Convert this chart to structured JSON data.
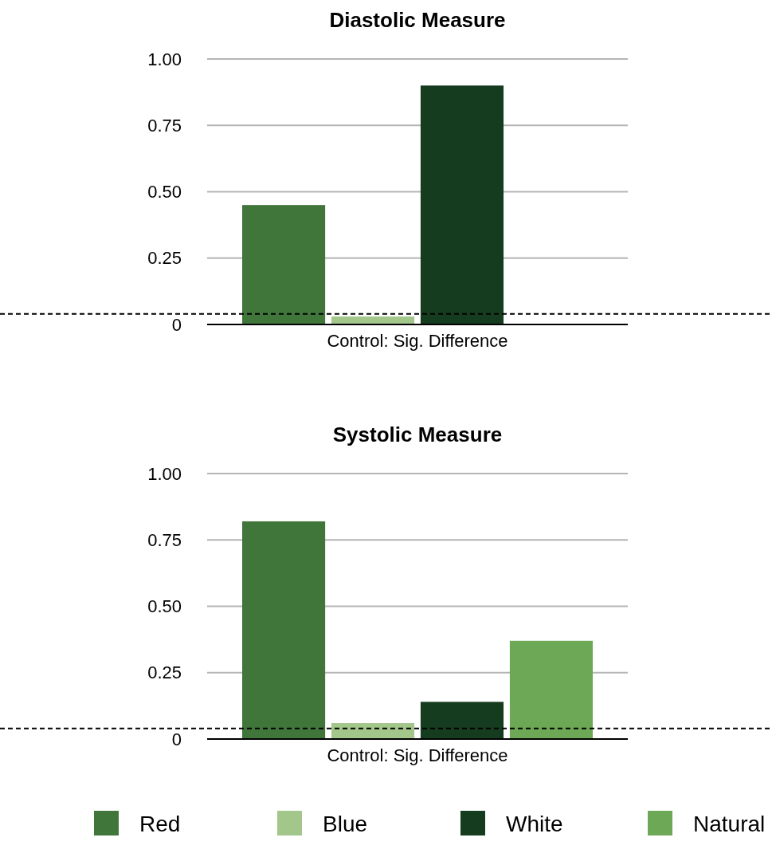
{
  "chart_data": [
    {
      "type": "bar",
      "title": "Diastolic Measure",
      "categories": [
        "Control: Sig. Difference"
      ],
      "series": [
        {
          "color": "#41763b",
          "values": [
            0.45
          ]
        },
        {
          "color": "#a3c68b",
          "values": [
            0.03
          ]
        },
        {
          "color": "#153c1e",
          "values": [
            0.9
          ]
        },
        {
          "color": "#6da856",
          "values": [
            null
          ]
        }
      ],
      "ylim": [
        0,
        1
      ],
      "yticks": [
        {
          "value": 0,
          "label": "0"
        },
        {
          "value": 0.25,
          "label": "0.25"
        },
        {
          "value": 0.5,
          "label": "0.50"
        },
        {
          "value": 0.75,
          "label": "0.75"
        },
        {
          "value": 1,
          "label": "1.00"
        }
      ],
      "grid": "y",
      "legend": false,
      "ref_lines": [
        {
          "axis": "y",
          "value": 0.04,
          "color": "#000000",
          "line_style": "dashed"
        }
      ]
    },
    {
      "type": "bar",
      "title": "Systolic Measure",
      "categories": [
        "Control: Sig. Difference"
      ],
      "series": [
        {
          "name": "Red",
          "color": "#41763b",
          "values": [
            0.82
          ]
        },
        {
          "name": "Blue",
          "color": "#a3c68b",
          "values": [
            0.06
          ]
        },
        {
          "name": "White",
          "color": "#153c1e",
          "values": [
            0.14
          ]
        },
        {
          "name": "Natural",
          "color": "#6da856",
          "values": [
            0.37
          ]
        }
      ],
      "ylim": [
        0,
        1
      ],
      "yticks": [
        {
          "value": 0,
          "label": "0"
        },
        {
          "value": 0.25,
          "label": "0.25"
        },
        {
          "value": 0.5,
          "label": "0.50"
        },
        {
          "value": 0.75,
          "label": "0.75"
        },
        {
          "value": 1,
          "label": "1.00"
        }
      ],
      "grid": "y",
      "legend": "bottom",
      "ref_lines": [
        {
          "axis": "y",
          "value": 0.04,
          "color": "#000000",
          "line_style": "dashed"
        }
      ]
    }
  ]
}
